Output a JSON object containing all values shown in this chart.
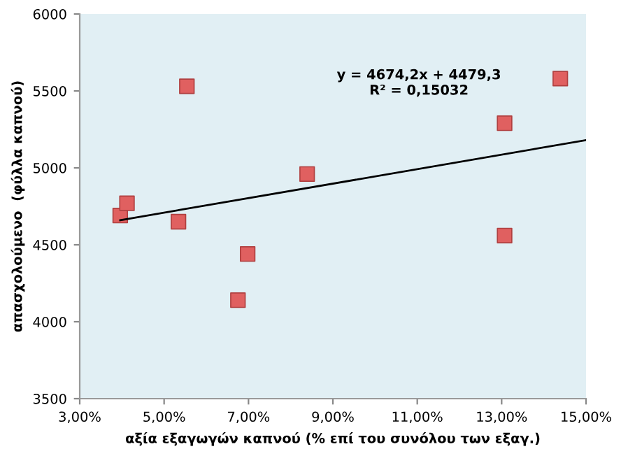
{
  "chart_data": {
    "type": "scatter",
    "xlabel": "αξία εξαγωγών καπνού (% επί του συνόλου των εξαγ.)",
    "ylabel": "απασχολούμενο  (φύλλα καπνού)",
    "grid": false,
    "legend": false,
    "xlim": [
      3,
      15
    ],
    "xticks": [
      {
        "value": 3,
        "label": "3,00%"
      },
      {
        "value": 5,
        "label": "5,00%"
      },
      {
        "value": 7,
        "label": "7,00%"
      },
      {
        "value": 9,
        "label": "9,00%"
      },
      {
        "value": 11,
        "label": "11,00%"
      },
      {
        "value": 13,
        "label": "13,00%"
      },
      {
        "value": 15,
        "label": "15,00%"
      }
    ],
    "ylim": [
      3500,
      6000
    ],
    "yticks": [
      3500,
      4000,
      4500,
      5000,
      5500,
      6000
    ],
    "series": [
      {
        "marker": "square",
        "color": "#e06060",
        "x": [
          3.96,
          4.12,
          5.54,
          5.34,
          8.39,
          13.07,
          14.39,
          13.07,
          6.98,
          6.75
        ],
        "values": [
          4690,
          4770,
          5530,
          4650,
          4960,
          5290,
          5580,
          4560,
          4440,
          4140
        ]
      },
      {
        "type": "line",
        "marker": "none",
        "color": "#000000",
        "x": [
          3.96,
          15
        ],
        "values": [
          4660,
          5180
        ]
      }
    ],
    "annotations": [
      "y = 4674,2x + 4479,3",
      "R² = 0,15032"
    ]
  }
}
